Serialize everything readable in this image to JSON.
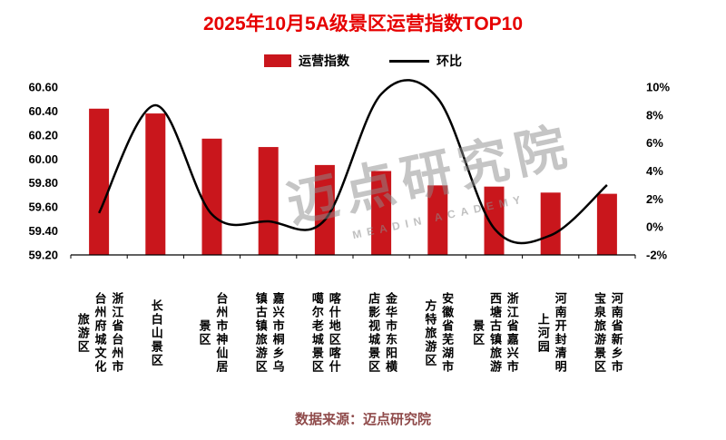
{
  "title": "2025年10月5A级景区运营指数TOP10",
  "legend": {
    "bar_label": "运营指数",
    "line_label": "环比"
  },
  "watermark": {
    "text": "迈点研究院",
    "subtext": "MEADIN ACADEMY"
  },
  "source": "数据来源：迈点研究院",
  "colors": {
    "title": "#E60000",
    "bar": "#C9161C",
    "line": "#000000",
    "source": "#8F4A4A"
  },
  "chart_data": {
    "type": "bar+line combo",
    "categories": [
      "浙江省台州市台州府城文化旅游区",
      "长白山景区",
      "台州市神仙居景区",
      "嘉兴市桐乡乌镇古镇旅游区",
      "喀什地区喀什噶尔老城景区",
      "金华市东阳横店影视城景区",
      "安徽省芜湖市方特旅游区",
      "浙江省嘉兴市西塘古镇旅游景区",
      "河南开封清明上河园",
      "河南省新乡市宝泉旅游景区"
    ],
    "series": [
      {
        "name": "运营指数",
        "type": "bar",
        "axis": "left",
        "values": [
          60.42,
          60.38,
          60.17,
          60.1,
          59.95,
          59.9,
          59.78,
          59.77,
          59.72,
          59.71
        ]
      },
      {
        "name": "环比",
        "type": "line",
        "axis": "right",
        "values": [
          1.0,
          8.7,
          0.9,
          0.4,
          0.5,
          9.5,
          9.2,
          -0.1,
          -0.6,
          3.0
        ]
      }
    ],
    "left_axis": {
      "min": 59.2,
      "max": 60.6,
      "step": 0.2
    },
    "right_axis": {
      "min": -2,
      "max": 10,
      "step": 2,
      "suffix": "%"
    },
    "grid": false,
    "legend_position": "top"
  }
}
